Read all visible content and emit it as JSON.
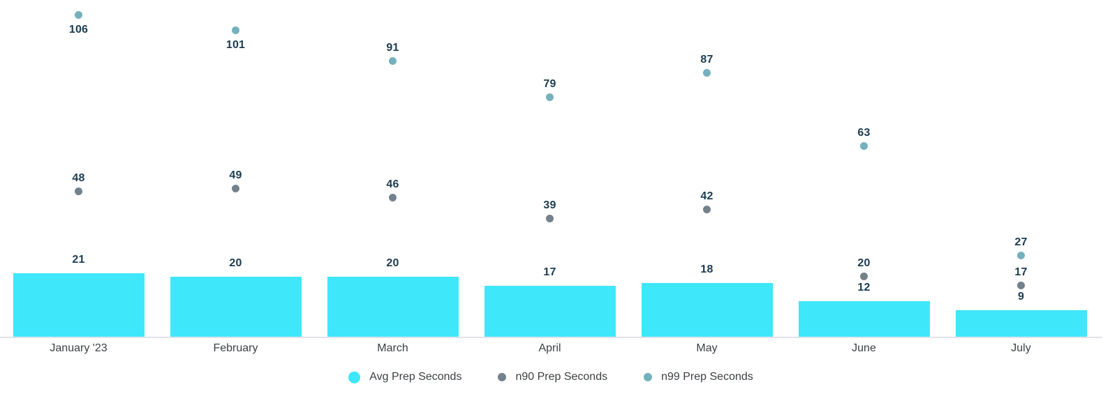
{
  "chart_data": {
    "type": "bar",
    "categories": [
      "January '23",
      "February",
      "March",
      "April",
      "May",
      "June",
      "July"
    ],
    "series": [
      {
        "name": "Avg Prep Seconds",
        "mark": "bar",
        "color": "#3EE7F9",
        "values": [
          21,
          20,
          20,
          17,
          18,
          12,
          9
        ]
      },
      {
        "name": "n90 Prep Seconds",
        "mark": "point",
        "color": "#73818B",
        "values": [
          48,
          49,
          46,
          39,
          42,
          20,
          17
        ]
      },
      {
        "name": "n99 Prep Seconds",
        "mark": "point",
        "color": "#74B1BC",
        "values": [
          106,
          101,
          91,
          79,
          87,
          63,
          27
        ]
      }
    ],
    "title": "",
    "xlabel": "",
    "ylabel": "",
    "ylim": [
      0,
      111
    ],
    "grid": false,
    "data_labels": true,
    "legend_position": "bottom"
  },
  "colors": {
    "value_label": "#1C3B4F",
    "axis_label": "#3C4043",
    "axis_line": "#E0E2E8",
    "background": "#FFFFFF"
  }
}
